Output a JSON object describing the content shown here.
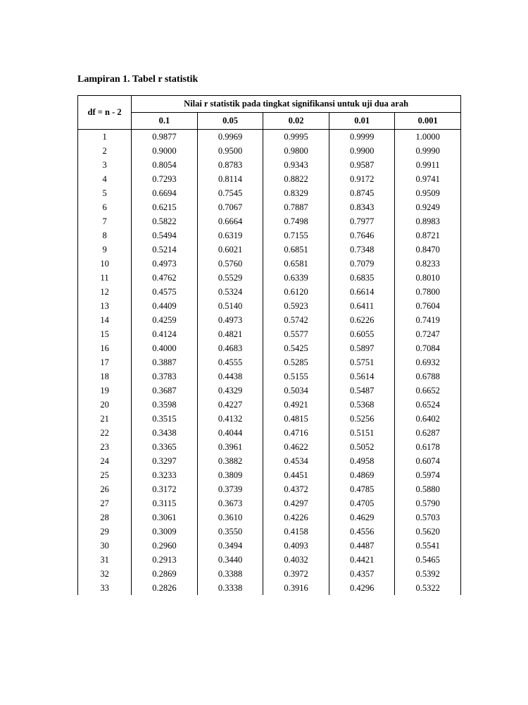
{
  "title": "Lampiran 1. Tabel r statistik",
  "table": {
    "type": "table",
    "header_df": "df = n - 2",
    "header_spanner": "Nilai r statistik pada tingkat signifikansi untuk uji dua arah",
    "sig_levels": [
      "0.1",
      "0.05",
      "0.02",
      "0.01",
      "0.001"
    ],
    "rows": [
      [
        "1",
        "0.9877",
        "0.9969",
        "0.9995",
        "0.9999",
        "1.0000"
      ],
      [
        "2",
        "0.9000",
        "0.9500",
        "0.9800",
        "0.9900",
        "0.9990"
      ],
      [
        "3",
        "0.8054",
        "0.8783",
        "0.9343",
        "0.9587",
        "0.9911"
      ],
      [
        "4",
        "0.7293",
        "0.8114",
        "0.8822",
        "0.9172",
        "0.9741"
      ],
      [
        "5",
        "0.6694",
        "0.7545",
        "0.8329",
        "0.8745",
        "0.9509"
      ],
      [
        "6",
        "0.6215",
        "0.7067",
        "0.7887",
        "0.8343",
        "0.9249"
      ],
      [
        "7",
        "0.5822",
        "0.6664",
        "0.7498",
        "0.7977",
        "0.8983"
      ],
      [
        "8",
        "0.5494",
        "0.6319",
        "0.7155",
        "0.7646",
        "0.8721"
      ],
      [
        "9",
        "0.5214",
        "0.6021",
        "0.6851",
        "0.7348",
        "0.8470"
      ],
      [
        "10",
        "0.4973",
        "0.5760",
        "0.6581",
        "0.7079",
        "0.8233"
      ],
      [
        "11",
        "0.4762",
        "0.5529",
        "0.6339",
        "0.6835",
        "0.8010"
      ],
      [
        "12",
        "0.4575",
        "0.5324",
        "0.6120",
        "0.6614",
        "0.7800"
      ],
      [
        "13",
        "0.4409",
        "0.5140",
        "0.5923",
        "0.6411",
        "0.7604"
      ],
      [
        "14",
        "0.4259",
        "0.4973",
        "0.5742",
        "0.6226",
        "0.7419"
      ],
      [
        "15",
        "0.4124",
        "0.4821",
        "0.5577",
        "0.6055",
        "0.7247"
      ],
      [
        "16",
        "0.4000",
        "0.4683",
        "0.5425",
        "0.5897",
        "0.7084"
      ],
      [
        "17",
        "0.3887",
        "0.4555",
        "0.5285",
        "0.5751",
        "0.6932"
      ],
      [
        "18",
        "0.3783",
        "0.4438",
        "0.5155",
        "0.5614",
        "0.6788"
      ],
      [
        "19",
        "0.3687",
        "0.4329",
        "0.5034",
        "0.5487",
        "0.6652"
      ],
      [
        "20",
        "0.3598",
        "0.4227",
        "0.4921",
        "0.5368",
        "0.6524"
      ],
      [
        "21",
        "0.3515",
        "0.4132",
        "0.4815",
        "0.5256",
        "0.6402"
      ],
      [
        "22",
        "0.3438",
        "0.4044",
        "0.4716",
        "0.5151",
        "0.6287"
      ],
      [
        "23",
        "0.3365",
        "0.3961",
        "0.4622",
        "0.5052",
        "0.6178"
      ],
      [
        "24",
        "0.3297",
        "0.3882",
        "0.4534",
        "0.4958",
        "0.6074"
      ],
      [
        "25",
        "0.3233",
        "0.3809",
        "0.4451",
        "0.4869",
        "0.5974"
      ],
      [
        "26",
        "0.3172",
        "0.3739",
        "0.4372",
        "0.4785",
        "0.5880"
      ],
      [
        "27",
        "0.3115",
        "0.3673",
        "0.4297",
        "0.4705",
        "0.5790"
      ],
      [
        "28",
        "0.3061",
        "0.3610",
        "0.4226",
        "0.4629",
        "0.5703"
      ],
      [
        "29",
        "0.3009",
        "0.3550",
        "0.4158",
        "0.4556",
        "0.5620"
      ],
      [
        "30",
        "0.2960",
        "0.3494",
        "0.4093",
        "0.4487",
        "0.5541"
      ],
      [
        "31",
        "0.2913",
        "0.3440",
        "0.4032",
        "0.4421",
        "0.5465"
      ],
      [
        "32",
        "0.2869",
        "0.3388",
        "0.3972",
        "0.4357",
        "0.5392"
      ],
      [
        "33",
        "0.2826",
        "0.3338",
        "0.3916",
        "0.4296",
        "0.5322"
      ]
    ],
    "border_color": "#000000",
    "background_color": "#ffffff",
    "font_family": "Times New Roman",
    "header_fontsize": 12.5,
    "body_fontsize": 12.5,
    "title_fontsize": 14,
    "title_weight": "bold"
  }
}
